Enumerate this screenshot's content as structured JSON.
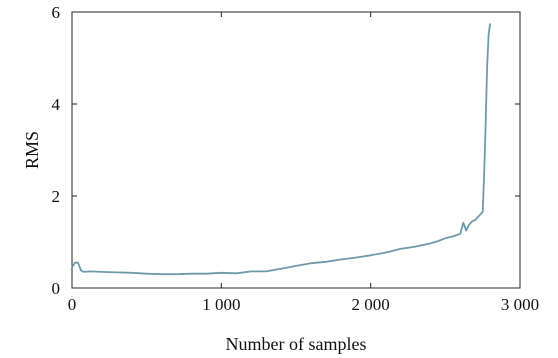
{
  "chart_data": {
    "type": "line",
    "xlabel": "Number of samples",
    "ylabel": "RMS",
    "xlim": [
      0,
      3000
    ],
    "ylim": [
      0,
      6
    ],
    "xticks": [
      0,
      1000,
      2000,
      3000
    ],
    "xtick_labels": [
      "0",
      "1 000",
      "2 000",
      "3 000"
    ],
    "yticks": [
      0,
      2,
      4,
      6
    ],
    "ytick_labels": [
      "0",
      "2",
      "4",
      "6"
    ],
    "grid": false,
    "legend": "none",
    "line_color": "#6f9aa8",
    "series": [
      {
        "x": [
          0,
          20,
          40,
          60,
          80,
          120,
          200,
          300,
          400,
          500,
          600,
          700,
          800,
          900,
          1000,
          1100,
          1200,
          1300,
          1400,
          1500,
          1600,
          1700,
          1800,
          1900,
          2000,
          2100,
          2200,
          2300,
          2400,
          2450,
          2500,
          2550,
          2600,
          2620,
          2640,
          2660,
          2680,
          2700,
          2720,
          2740,
          2750,
          2760,
          2770,
          2780,
          2790,
          2800
        ],
        "y": [
          0.45,
          0.55,
          0.55,
          0.38,
          0.35,
          0.36,
          0.35,
          0.34,
          0.33,
          0.31,
          0.3,
          0.3,
          0.31,
          0.31,
          0.33,
          0.32,
          0.36,
          0.36,
          0.42,
          0.48,
          0.54,
          0.57,
          0.62,
          0.66,
          0.71,
          0.77,
          0.85,
          0.9,
          0.97,
          1.02,
          1.08,
          1.12,
          1.18,
          1.42,
          1.25,
          1.38,
          1.45,
          1.48,
          1.55,
          1.62,
          1.65,
          2.5,
          3.6,
          4.8,
          5.5,
          5.75
        ]
      }
    ]
  }
}
